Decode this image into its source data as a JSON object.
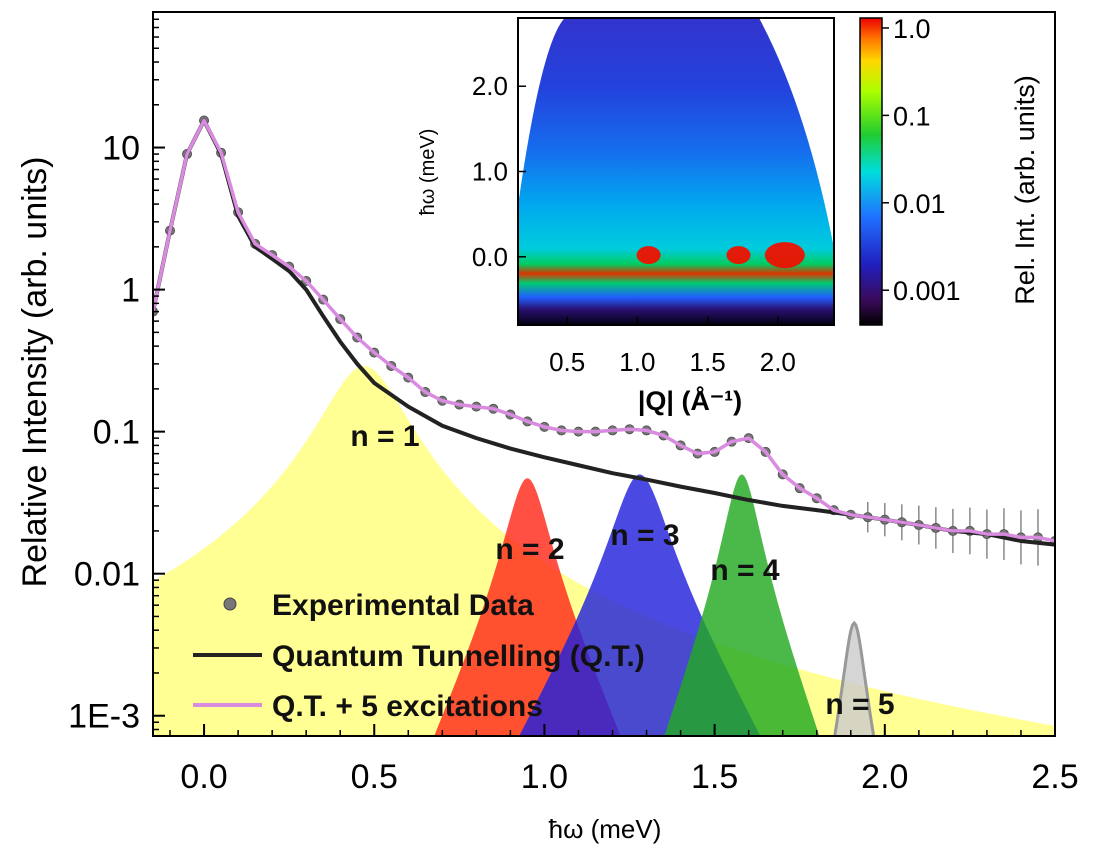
{
  "chart_data": [
    {
      "type": "line",
      "role": "main",
      "xlabel": "ħω (meV)",
      "ylabel": "Relative Intensity (arb. units)",
      "xlim": [
        -0.15,
        2.5
      ],
      "ylim": [
        0.00072,
        90
      ],
      "yscale": "log",
      "x_ticks": [
        0.0,
        0.5,
        1.0,
        1.5,
        2.0,
        2.5
      ],
      "x_tick_labels": [
        "0.0",
        "0.5",
        "1.0",
        "1.5",
        "2.0",
        "2.5"
      ],
      "y_ticks": [
        0.001,
        0.01,
        0.1,
        1,
        10
      ],
      "y_tick_labels": [
        "1E-3",
        "0.01",
        "0.1",
        "1",
        "10"
      ],
      "legend": {
        "placement": "bottom-left",
        "entries": [
          "Experimental Data",
          "Quantum Tunnelling (Q.T.)",
          "Q.T. + 5 excitations"
        ]
      },
      "series": [
        {
          "name": "Experimental Data",
          "style": "scatter-with-errorbars",
          "color": "#666666",
          "x": [
            -0.15,
            -0.1,
            -0.05,
            0.0,
            0.05,
            0.1,
            0.15,
            0.2,
            0.25,
            0.3,
            0.35,
            0.4,
            0.45,
            0.5,
            0.55,
            0.6,
            0.65,
            0.7,
            0.75,
            0.8,
            0.85,
            0.9,
            0.95,
            1.0,
            1.05,
            1.1,
            1.15,
            1.2,
            1.25,
            1.3,
            1.35,
            1.4,
            1.45,
            1.5,
            1.55,
            1.6,
            1.65,
            1.7,
            1.75,
            1.8,
            1.85,
            1.9,
            1.95,
            2.0,
            2.05,
            2.1,
            2.15,
            2.2,
            2.25,
            2.3,
            2.35,
            2.4,
            2.45,
            2.5
          ],
          "y": [
            0.7,
            2.6,
            9.0,
            15.5,
            9.2,
            3.5,
            2.1,
            1.75,
            1.45,
            1.15,
            0.85,
            0.62,
            0.46,
            0.36,
            0.29,
            0.24,
            0.19,
            0.165,
            0.155,
            0.15,
            0.145,
            0.132,
            0.118,
            0.108,
            0.102,
            0.1,
            0.1,
            0.102,
            0.104,
            0.102,
            0.094,
            0.08,
            0.07,
            0.072,
            0.085,
            0.09,
            0.072,
            0.05,
            0.04,
            0.034,
            0.028,
            0.026,
            0.025,
            0.024,
            0.023,
            0.022,
            0.021,
            0.02,
            0.02,
            0.019,
            0.019,
            0.018,
            0.018,
            0.017
          ]
        },
        {
          "name": "Quantum Tunnelling (Q.T.)",
          "style": "line",
          "color": "#222222",
          "x": [
            -0.15,
            -0.1,
            -0.05,
            0.0,
            0.05,
            0.1,
            0.15,
            0.2,
            0.25,
            0.3,
            0.35,
            0.4,
            0.45,
            0.5,
            0.6,
            0.7,
            0.8,
            0.9,
            1.0,
            1.1,
            1.2,
            1.3,
            1.4,
            1.5,
            1.6,
            1.7,
            1.8,
            1.9,
            2.0,
            2.1,
            2.2,
            2.3,
            2.4,
            2.5
          ],
          "y": [
            0.7,
            2.6,
            9.0,
            15.5,
            9.0,
            3.3,
            2.0,
            1.65,
            1.35,
            1.0,
            0.65,
            0.43,
            0.3,
            0.22,
            0.15,
            0.11,
            0.09,
            0.076,
            0.066,
            0.058,
            0.051,
            0.046,
            0.041,
            0.037,
            0.033,
            0.03,
            0.028,
            0.026,
            0.024,
            0.022,
            0.02,
            0.019,
            0.017,
            0.016
          ]
        },
        {
          "name": "Q.T. + 5 excitations",
          "style": "line",
          "color": "#d98be0",
          "x": [
            -0.15,
            -0.1,
            -0.05,
            0.0,
            0.05,
            0.1,
            0.15,
            0.2,
            0.25,
            0.3,
            0.35,
            0.4,
            0.45,
            0.5,
            0.55,
            0.6,
            0.65,
            0.7,
            0.75,
            0.8,
            0.85,
            0.9,
            0.95,
            1.0,
            1.05,
            1.1,
            1.15,
            1.2,
            1.25,
            1.3,
            1.35,
            1.4,
            1.45,
            1.5,
            1.55,
            1.6,
            1.65,
            1.7,
            1.75,
            1.8,
            1.85,
            1.9,
            1.95,
            2.0,
            2.05,
            2.1,
            2.15,
            2.2,
            2.25,
            2.3,
            2.35,
            2.4,
            2.45,
            2.5
          ],
          "y": [
            0.7,
            2.6,
            9.0,
            15.5,
            9.2,
            3.5,
            2.1,
            1.75,
            1.45,
            1.15,
            0.85,
            0.62,
            0.46,
            0.36,
            0.29,
            0.24,
            0.19,
            0.165,
            0.155,
            0.15,
            0.145,
            0.132,
            0.118,
            0.108,
            0.102,
            0.1,
            0.1,
            0.102,
            0.104,
            0.102,
            0.094,
            0.08,
            0.07,
            0.072,
            0.085,
            0.09,
            0.072,
            0.05,
            0.04,
            0.034,
            0.028,
            0.026,
            0.025,
            0.024,
            0.023,
            0.022,
            0.021,
            0.02,
            0.02,
            0.019,
            0.019,
            0.018,
            0.018,
            0.017
          ]
        }
      ],
      "excitations": [
        {
          "label": "n = 1",
          "center": 0.47,
          "peak": 0.29,
          "width": 0.22,
          "color": "#ffff80"
        },
        {
          "label": "n = 2",
          "center": 0.95,
          "peak": 0.047,
          "width": 0.11,
          "color": "#ff2a1a"
        },
        {
          "label": "n = 3",
          "center": 1.28,
          "peak": 0.05,
          "width": 0.14,
          "color": "#2222dd"
        },
        {
          "label": "n = 4",
          "center": 1.58,
          "peak": 0.05,
          "width": 0.09,
          "color": "#22aa22"
        },
        {
          "label": "n = 5",
          "center": 1.91,
          "peak": 0.0045,
          "width": 0.055,
          "color": "#cccccc"
        }
      ]
    },
    {
      "type": "heatmap",
      "role": "inset",
      "xlabel": "|Q| (Å⁻¹)",
      "ylabel": "ħω (meV)",
      "xlim": [
        0.15,
        2.4
      ],
      "ylim": [
        -0.8,
        2.8
      ],
      "x_ticks": [
        0.5,
        1.0,
        1.5,
        2.0
      ],
      "x_tick_labels": [
        "0.5",
        "1.0",
        "1.5",
        "2.0"
      ],
      "y_ticks": [
        0.0,
        1.0,
        2.0
      ],
      "y_tick_labels": [
        "0.0",
        "1.0",
        "2.0"
      ],
      "colorbar": {
        "label": "Rel. Int. (arb. units)",
        "scale": "log",
        "range": [
          0.0004,
          1.3
        ],
        "ticks": [
          0.001,
          0.01,
          0.1,
          1.0
        ],
        "tick_labels": [
          "0.001",
          "0.01",
          "0.1",
          "1.0"
        ]
      },
      "hotspots_Q": [
        1.08,
        1.72,
        2.05
      ]
    }
  ]
}
